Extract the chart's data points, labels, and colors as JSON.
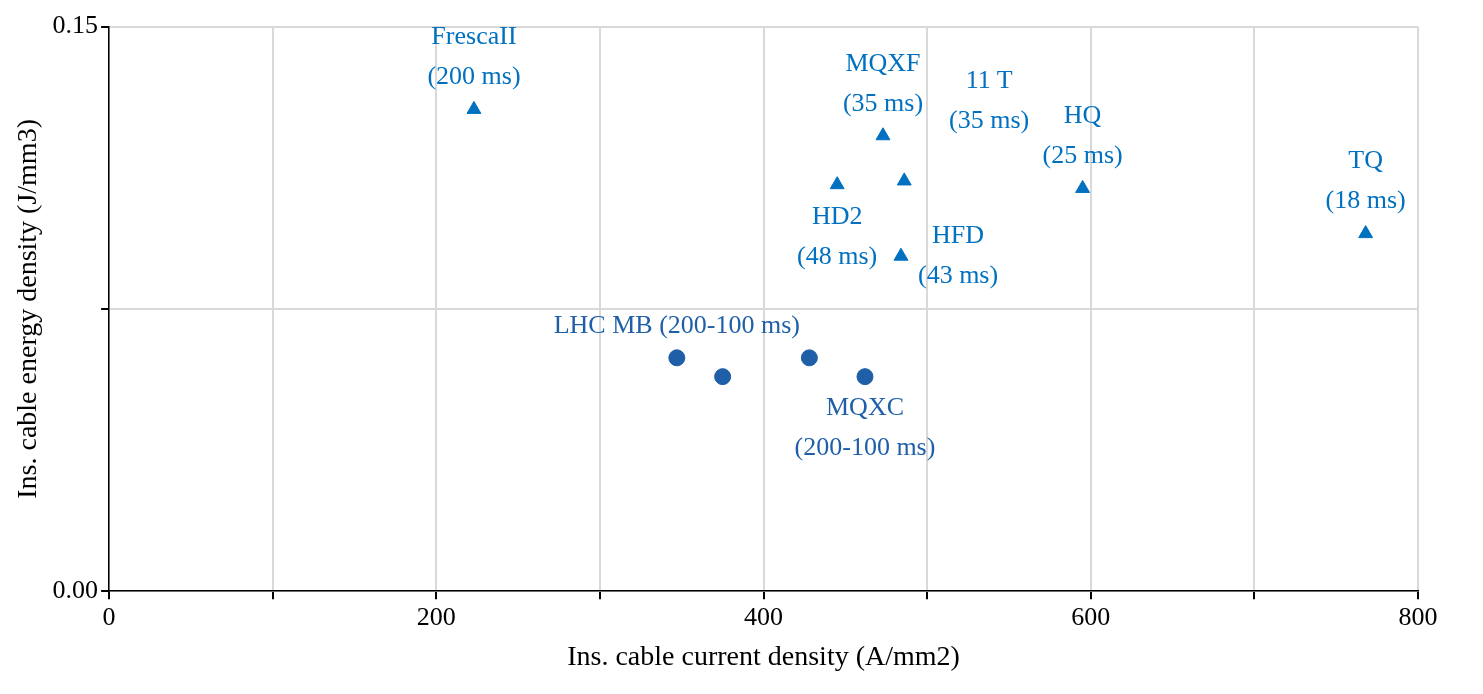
{
  "chart_data": {
    "type": "scatter",
    "xlabel": "Ins. cable current density (A/mm2)",
    "ylabel": "Ins. cable energy density (J/mm3)",
    "xlim": [
      0,
      800
    ],
    "xticks": [
      0,
      {
        "value": 100,
        "label": null
      },
      200,
      {
        "value": 300,
        "label": null
      },
      400,
      {
        "value": 500,
        "label": null
      },
      600,
      {
        "value": 700,
        "label": null
      },
      800
    ],
    "ylim": [
      0,
      0.15
    ],
    "yticks": [
      {
        "value": 0,
        "label": "0.00"
      },
      {
        "value": 0.075,
        "label": null
      },
      0.15
    ],
    "grid": true,
    "legend": false,
    "series": [
      {
        "color": "#0070c0",
        "marker": "triangle",
        "x": [
          223,
          445,
          473,
          486,
          484,
          595,
          768
        ],
        "values": [
          0.128,
          0.108,
          0.121,
          0.109,
          0.089,
          0.107,
          0.095
        ]
      },
      {
        "color": "#1f5fa8",
        "marker": "circle",
        "x": [
          347,
          375,
          428,
          462
        ],
        "values": [
          0.062,
          0.057,
          0.062,
          0.057
        ]
      }
    ],
    "annotations": [
      {
        "text": "FrescaII\n(200 ms)",
        "x": 223,
        "y": 0.128
      },
      {
        "text": "HD2\n(48 ms)",
        "x": 445,
        "y": 0.108
      },
      {
        "text": "MQXF\n(35 ms)",
        "x": 473,
        "y": 0.121
      },
      {
        "text": "HFD\n(43 ms)",
        "x": 484,
        "y": 0.089
      },
      {
        "text": "11 T\n(35 ms)",
        "x": 486,
        "y": 0.109
      },
      {
        "text": "HQ\n(25 ms)",
        "x": 595,
        "y": 0.107
      },
      {
        "text": "TQ\n(18 ms)",
        "x": 768,
        "y": 0.095
      },
      {
        "text": "LHC MB (200-100 ms)",
        "x": 347,
        "y": 0.062
      },
      {
        "text": "MQXC\n(200-100 ms)",
        "x": 462,
        "y": 0.057
      }
    ]
  }
}
